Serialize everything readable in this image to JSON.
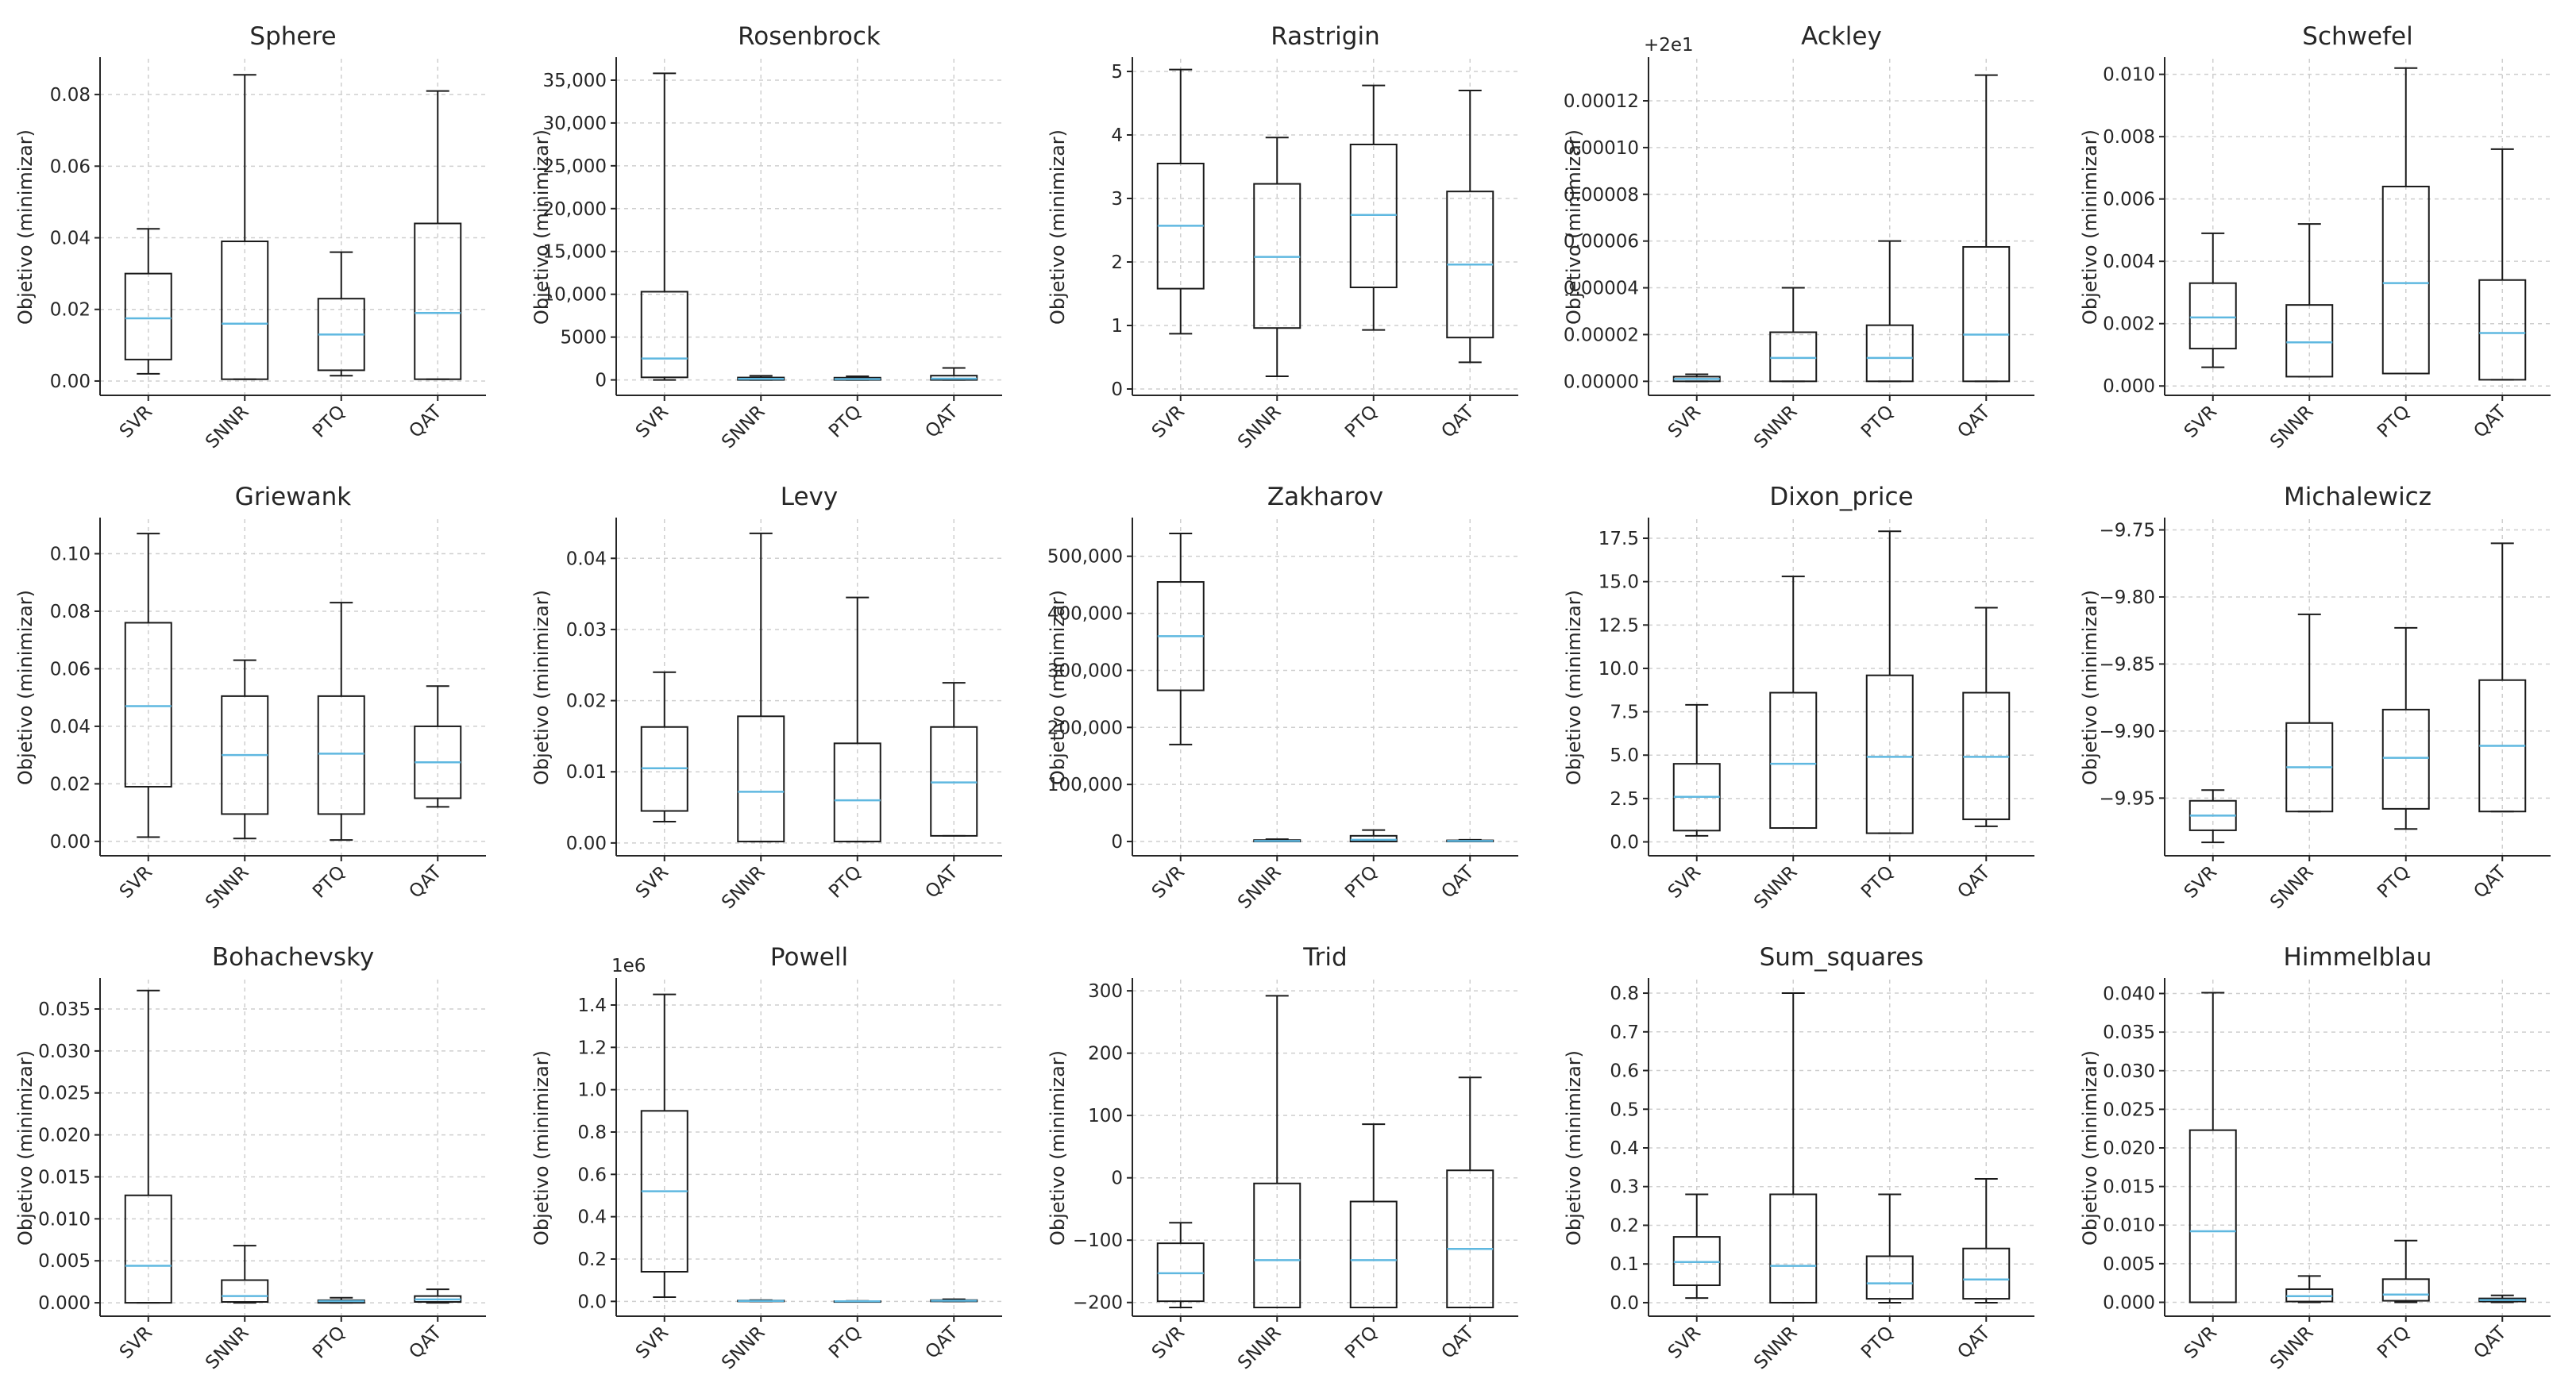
{
  "colors": {
    "median": "#5fb8e0",
    "box": "#1a1a1a",
    "grid": "#cfcfcf",
    "text": "#262626"
  },
  "chart_data": [
    {
      "type": "box",
      "title": "Sphere",
      "ylabel": "Objetivo (minimizar)",
      "categories": [
        "SVR",
        "SNNR",
        "PTQ",
        "QAT"
      ],
      "ylim": [
        -0.004,
        0.09
      ],
      "yticks": [
        0,
        0.02,
        0.04,
        0.06,
        0.08
      ],
      "ytick_labels": [
        "0.00",
        "0.02",
        "0.04",
        "0.06",
        "0.08"
      ],
      "boxes": [
        {
          "whislo": 0.002,
          "q1": 0.006,
          "med": 0.0175,
          "q3": 0.03,
          "whishi": 0.0425
        },
        {
          "whislo": 0.0005,
          "q1": 0.0005,
          "med": 0.016,
          "q3": 0.039,
          "whishi": 0.0855
        },
        {
          "whislo": 0.0015,
          "q1": 0.003,
          "med": 0.013,
          "q3": 0.023,
          "whishi": 0.036
        },
        {
          "whislo": 0.0005,
          "q1": 0.0005,
          "med": 0.019,
          "q3": 0.044,
          "whishi": 0.081
        }
      ]
    },
    {
      "type": "box",
      "title": "Rosenbrock",
      "ylabel": "Objetivo (minimizar)",
      "categories": [
        "SVR",
        "SNNR",
        "PTQ",
        "QAT"
      ],
      "ylim": [
        -1800,
        37500
      ],
      "yticks": [
        0,
        5000,
        10000,
        15000,
        20000,
        25000,
        30000,
        35000
      ],
      "ytick_labels": [
        "0",
        "5000",
        "10,000",
        "15,000",
        "20,000",
        "25,000",
        "30,000",
        "35,000"
      ],
      "boxes": [
        {
          "whislo": 0,
          "q1": 300,
          "med": 2500,
          "q3": 10300,
          "whishi": 35800
        },
        {
          "whislo": 0,
          "q1": 0,
          "med": 120,
          "q3": 280,
          "whishi": 480
        },
        {
          "whislo": 0,
          "q1": 0,
          "med": 100,
          "q3": 260,
          "whishi": 420
        },
        {
          "whislo": 0,
          "q1": 0,
          "med": 150,
          "q3": 500,
          "whishi": 1400
        }
      ]
    },
    {
      "type": "box",
      "title": "Rastrigin",
      "ylabel": "Objetivo (minimizar)",
      "categories": [
        "SVR",
        "SNNR",
        "PTQ",
        "QAT"
      ],
      "ylim": [
        -0.1,
        5.2
      ],
      "yticks": [
        0,
        1,
        2,
        3,
        4,
        5
      ],
      "ytick_labels": [
        "0",
        "1",
        "2",
        "3",
        "4",
        "5"
      ],
      "boxes": [
        {
          "whislo": 0.87,
          "q1": 1.58,
          "med": 2.57,
          "q3": 3.55,
          "whishi": 5.03
        },
        {
          "whislo": 0.2,
          "q1": 0.96,
          "med": 2.08,
          "q3": 3.23,
          "whishi": 3.96
        },
        {
          "whislo": 0.93,
          "q1": 1.6,
          "med": 2.74,
          "q3": 3.85,
          "whishi": 4.78
        },
        {
          "whislo": 0.42,
          "q1": 0.81,
          "med": 1.96,
          "q3": 3.11,
          "whishi": 4.7
        }
      ]
    },
    {
      "type": "box",
      "title": "Ackley",
      "ylabel": "Objetivo (minimizar)",
      "offset_text": "+2e1",
      "categories": [
        "SVR",
        "SNNR",
        "PTQ",
        "QAT"
      ],
      "ylim": [
        -6e-06,
        0.000138
      ],
      "yticks": [
        0,
        2e-05,
        4e-05,
        6e-05,
        8e-05,
        0.0001,
        0.00012
      ],
      "ytick_labels": [
        "0.00000",
        "0.00002",
        "0.00004",
        "0.00006",
        "0.00008",
        "0.00010",
        "0.00012"
      ],
      "boxes": [
        {
          "whislo": 0,
          "q1": 0,
          "med": 1e-06,
          "q3": 2e-06,
          "whishi": 3e-06
        },
        {
          "whislo": 0,
          "q1": 0,
          "med": 1e-05,
          "q3": 2.1e-05,
          "whishi": 4e-05
        },
        {
          "whislo": 0,
          "q1": 0,
          "med": 1e-05,
          "q3": 2.4e-05,
          "whishi": 6e-05
        },
        {
          "whislo": 0,
          "q1": 0,
          "med": 2e-05,
          "q3": 5.75e-05,
          "whishi": 0.000131
        }
      ]
    },
    {
      "type": "box",
      "title": "Schwefel",
      "ylabel": "Objetivo (minimizar)",
      "categories": [
        "SVR",
        "SNNR",
        "PTQ",
        "QAT"
      ],
      "ylim": [
        -0.0003,
        0.0105
      ],
      "yticks": [
        0,
        0.002,
        0.004,
        0.006,
        0.008,
        0.01
      ],
      "ytick_labels": [
        "0.000",
        "0.002",
        "0.004",
        "0.006",
        "0.008",
        "0.010"
      ],
      "boxes": [
        {
          "whislo": 0.0006,
          "q1": 0.0012,
          "med": 0.0022,
          "q3": 0.0033,
          "whishi": 0.0049
        },
        {
          "whislo": 0.0003,
          "q1": 0.0003,
          "med": 0.0014,
          "q3": 0.0026,
          "whishi": 0.0052
        },
        {
          "whislo": 0.0004,
          "q1": 0.0004,
          "med": 0.0033,
          "q3": 0.0064,
          "whishi": 0.0102
        },
        {
          "whislo": 0.0002,
          "q1": 0.0002,
          "med": 0.0017,
          "q3": 0.0034,
          "whishi": 0.0076
        }
      ]
    },
    {
      "type": "box",
      "title": "Griewank",
      "ylabel": "Objetivo (minimizar)",
      "categories": [
        "SVR",
        "SNNR",
        "PTQ",
        "QAT"
      ],
      "ylim": [
        -0.005,
        0.112
      ],
      "yticks": [
        0,
        0.02,
        0.04,
        0.06,
        0.08,
        0.1
      ],
      "ytick_labels": [
        "0.00",
        "0.02",
        "0.04",
        "0.06",
        "0.08",
        "0.10"
      ],
      "boxes": [
        {
          "whislo": 0.0015,
          "q1": 0.019,
          "med": 0.047,
          "q3": 0.076,
          "whishi": 0.107
        },
        {
          "whislo": 0.001,
          "q1": 0.0095,
          "med": 0.03,
          "q3": 0.0505,
          "whishi": 0.063
        },
        {
          "whislo": 0.0005,
          "q1": 0.0095,
          "med": 0.0305,
          "q3": 0.0505,
          "whishi": 0.083
        },
        {
          "whislo": 0.012,
          "q1": 0.015,
          "med": 0.0275,
          "q3": 0.04,
          "whishi": 0.054
        }
      ]
    },
    {
      "type": "box",
      "title": "Levy",
      "ylabel": "Objetivo (minimizar)",
      "categories": [
        "SVR",
        "SNNR",
        "PTQ",
        "QAT"
      ],
      "ylim": [
        -0.0018,
        0.0455
      ],
      "yticks": [
        0,
        0.01,
        0.02,
        0.03,
        0.04
      ],
      "ytick_labels": [
        "0.00",
        "0.01",
        "0.02",
        "0.03",
        "0.04"
      ],
      "boxes": [
        {
          "whislo": 0.003,
          "q1": 0.0045,
          "med": 0.0105,
          "q3": 0.0163,
          "whishi": 0.024
        },
        {
          "whislo": 0.0002,
          "q1": 0.0002,
          "med": 0.0072,
          "q3": 0.0178,
          "whishi": 0.0435
        },
        {
          "whislo": 0.0002,
          "q1": 0.0002,
          "med": 0.006,
          "q3": 0.014,
          "whishi": 0.0345
        },
        {
          "whislo": 0.001,
          "q1": 0.001,
          "med": 0.0085,
          "q3": 0.0163,
          "whishi": 0.0225
        }
      ]
    },
    {
      "type": "box",
      "title": "Zakharov",
      "ylabel": "Objetivo (minimizar)",
      "categories": [
        "SVR",
        "SNNR",
        "PTQ",
        "QAT"
      ],
      "ylim": [
        -25000,
        565000
      ],
      "yticks": [
        0,
        100000,
        200000,
        300000,
        400000,
        500000
      ],
      "ytick_labels": [
        "0",
        "100,000",
        "200,000",
        "300,000",
        "400,000",
        "500,000"
      ],
      "boxes": [
        {
          "whislo": 170000,
          "q1": 265000,
          "med": 360000,
          "q3": 455000,
          "whishi": 540000
        },
        {
          "whislo": 0,
          "q1": 0,
          "med": 1000,
          "q3": 2500,
          "whishi": 4000
        },
        {
          "whislo": 0,
          "q1": 0,
          "med": 3000,
          "q3": 10000,
          "whishi": 20000
        },
        {
          "whislo": 0,
          "q1": 0,
          "med": 1000,
          "q3": 2000,
          "whishi": 3000
        }
      ]
    },
    {
      "type": "box",
      "title": "Dixon_price",
      "ylabel": "Objetivo (minimizar)",
      "categories": [
        "SVR",
        "SNNR",
        "PTQ",
        "QAT"
      ],
      "ylim": [
        -0.8,
        18.6
      ],
      "yticks": [
        0,
        2.5,
        5,
        7.5,
        10,
        12.5,
        15,
        17.5
      ],
      "ytick_labels": [
        "0.0",
        "2.5",
        "5.0",
        "7.5",
        "10.0",
        "12.5",
        "15.0",
        "17.5"
      ],
      "boxes": [
        {
          "whislo": 0.35,
          "q1": 0.65,
          "med": 2.6,
          "q3": 4.5,
          "whishi": 7.9
        },
        {
          "whislo": 0.8,
          "q1": 0.8,
          "med": 4.5,
          "q3": 8.6,
          "whishi": 15.3
        },
        {
          "whislo": 0.5,
          "q1": 0.5,
          "med": 4.9,
          "q3": 9.6,
          "whishi": 17.9
        },
        {
          "whislo": 0.9,
          "q1": 1.3,
          "med": 4.9,
          "q3": 8.6,
          "whishi": 13.5
        }
      ]
    },
    {
      "type": "box",
      "title": "Michalewicz",
      "ylabel": "Objetivo (minimizar)",
      "categories": [
        "SVR",
        "SNNR",
        "PTQ",
        "QAT"
      ],
      "ylim": [
        -9.993,
        -9.742
      ],
      "yticks": [
        -9.95,
        -9.9,
        -9.85,
        -9.8,
        -9.75
      ],
      "ytick_labels": [
        "−9.95",
        "−9.90",
        "−9.85",
        "−9.80",
        "−9.75"
      ],
      "boxes": [
        {
          "whislo": -9.983,
          "q1": -9.974,
          "med": -9.963,
          "q3": -9.952,
          "whishi": -9.944
        },
        {
          "whislo": -9.96,
          "q1": -9.96,
          "med": -9.927,
          "q3": -9.894,
          "whishi": -9.813
        },
        {
          "whislo": -9.973,
          "q1": -9.958,
          "med": -9.92,
          "q3": -9.884,
          "whishi": -9.823
        },
        {
          "whislo": -9.96,
          "q1": -9.96,
          "med": -9.911,
          "q3": -9.862,
          "whishi": -9.76
        }
      ]
    },
    {
      "type": "box",
      "title": "Bohachevsky",
      "ylabel": "Objetivo (minimizar)",
      "categories": [
        "SVR",
        "SNNR",
        "PTQ",
        "QAT"
      ],
      "ylim": [
        -0.0016,
        0.0385
      ],
      "yticks": [
        0,
        0.005,
        0.01,
        0.015,
        0.02,
        0.025,
        0.03,
        0.035
      ],
      "ytick_labels": [
        "0.000",
        "0.005",
        "0.010",
        "0.015",
        "0.020",
        "0.025",
        "0.030",
        "0.035"
      ],
      "boxes": [
        {
          "whislo": 0,
          "q1": 0,
          "med": 0.0044,
          "q3": 0.0128,
          "whishi": 0.0372
        },
        {
          "whislo": 0,
          "q1": 0.0001,
          "med": 0.0008,
          "q3": 0.0027,
          "whishi": 0.0068
        },
        {
          "whislo": 0,
          "q1": 0,
          "med": 0.0002,
          "q3": 0.0003,
          "whishi": 0.0006
        },
        {
          "whislo": 0,
          "q1": 0.0001,
          "med": 0.0004,
          "q3": 0.0008,
          "whishi": 0.0016
        }
      ]
    },
    {
      "type": "box",
      "title": "Powell",
      "ylabel": "Objetivo (minimizar)",
      "offset_text": "1e6",
      "categories": [
        "SVR",
        "SNNR",
        "PTQ",
        "QAT"
      ],
      "ylim": [
        -0.07,
        1.52
      ],
      "yticks": [
        0,
        0.2,
        0.4,
        0.6,
        0.8,
        1,
        1.2,
        1.4
      ],
      "ytick_labels": [
        "0.0",
        "0.2",
        "0.4",
        "0.6",
        "0.8",
        "1.0",
        "1.2",
        "1.4"
      ],
      "boxes": [
        {
          "whislo": 0.02,
          "q1": 0.14,
          "med": 0.52,
          "q3": 0.9,
          "whishi": 1.45
        },
        {
          "whislo": 0,
          "q1": 0,
          "med": 0.002,
          "q3": 0.004,
          "whishi": 0.006
        },
        {
          "whislo": 0,
          "q1": 0,
          "med": 0.0005,
          "q3": 0.001,
          "whishi": 0.002
        },
        {
          "whislo": 0,
          "q1": 0,
          "med": 0.003,
          "q3": 0.006,
          "whishi": 0.01
        }
      ]
    },
    {
      "type": "box",
      "title": "Trid",
      "ylabel": "Objetivo (minimizar)",
      "categories": [
        "SVR",
        "SNNR",
        "PTQ",
        "QAT"
      ],
      "ylim": [
        -222,
        318
      ],
      "yticks": [
        -200,
        -100,
        0,
        100,
        200,
        300
      ],
      "ytick_labels": [
        "−200",
        "−100",
        "0",
        "100",
        "200",
        "300"
      ],
      "boxes": [
        {
          "whislo": -208,
          "q1": -198,
          "med": -153,
          "q3": -105,
          "whishi": -72
        },
        {
          "whislo": -208,
          "q1": -208,
          "med": -132,
          "q3": -9,
          "whishi": 292
        },
        {
          "whislo": -208,
          "q1": -208,
          "med": -132,
          "q3": -38,
          "whishi": 86
        },
        {
          "whislo": -208,
          "q1": -208,
          "med": -114,
          "q3": 12,
          "whishi": 161
        }
      ]
    },
    {
      "type": "box",
      "title": "Sum_squares",
      "ylabel": "Objetivo (minimizar)",
      "categories": [
        "SVR",
        "SNNR",
        "PTQ",
        "QAT"
      ],
      "ylim": [
        -0.035,
        0.835
      ],
      "yticks": [
        0,
        0.1,
        0.2,
        0.3,
        0.4,
        0.5,
        0.6,
        0.7,
        0.8
      ],
      "ytick_labels": [
        "0.0",
        "0.1",
        "0.2",
        "0.3",
        "0.4",
        "0.5",
        "0.6",
        "0.7",
        "0.8"
      ],
      "boxes": [
        {
          "whislo": 0.012,
          "q1": 0.045,
          "med": 0.105,
          "q3": 0.17,
          "whishi": 0.28
        },
        {
          "whislo": 0,
          "q1": 0,
          "med": 0.095,
          "q3": 0.28,
          "whishi": 0.8
        },
        {
          "whislo": 0,
          "q1": 0.01,
          "med": 0.05,
          "q3": 0.12,
          "whishi": 0.28
        },
        {
          "whislo": 0,
          "q1": 0.01,
          "med": 0.06,
          "q3": 0.14,
          "whishi": 0.32
        }
      ]
    },
    {
      "type": "box",
      "title": "Himmelblau",
      "ylabel": "Objetivo (minimizar)",
      "categories": [
        "SVR",
        "SNNR",
        "PTQ",
        "QAT"
      ],
      "ylim": [
        -0.0018,
        0.0418
      ],
      "yticks": [
        0,
        0.005,
        0.01,
        0.015,
        0.02,
        0.025,
        0.03,
        0.035,
        0.04
      ],
      "ytick_labels": [
        "0.000",
        "0.005",
        "0.010",
        "0.015",
        "0.020",
        "0.025",
        "0.030",
        "0.035",
        "0.040"
      ],
      "boxes": [
        {
          "whislo": 0,
          "q1": 0,
          "med": 0.0092,
          "q3": 0.0223,
          "whishi": 0.0401
        },
        {
          "whislo": 0,
          "q1": 0.0001,
          "med": 0.0008,
          "q3": 0.0017,
          "whishi": 0.0034
        },
        {
          "whislo": 0,
          "q1": 0.0002,
          "med": 0.001,
          "q3": 0.003,
          "whishi": 0.008
        },
        {
          "whislo": 0,
          "q1": 0.0001,
          "med": 0.0003,
          "q3": 0.0005,
          "whishi": 0.0009
        }
      ]
    }
  ]
}
